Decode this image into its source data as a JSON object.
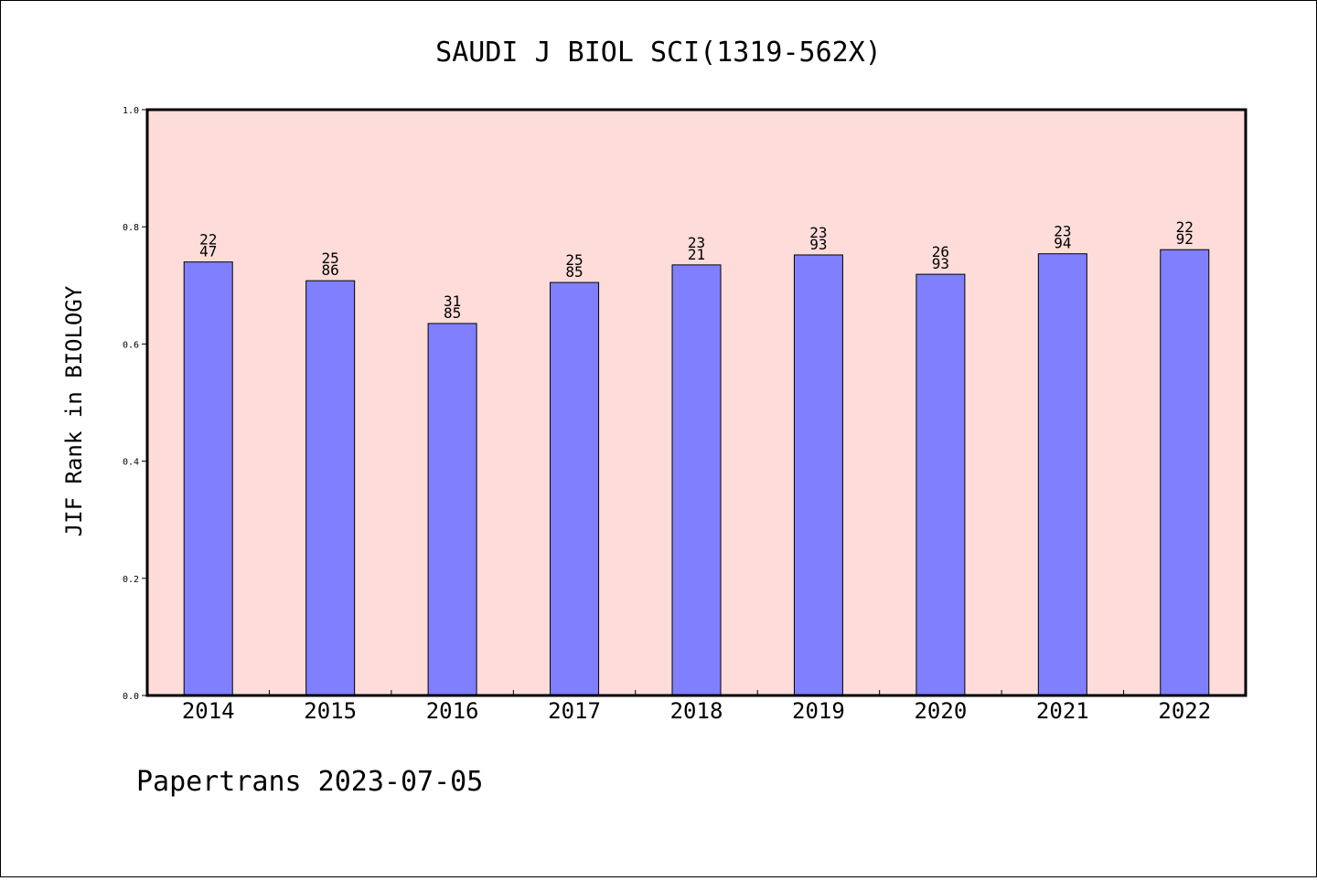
{
  "chart_data": {
    "type": "bar",
    "title": "SAUDI J BIOL SCI(1319-562X)",
    "xlabel": "",
    "ylabel": "JIF Rank in BIOLOGY",
    "ylim": [
      0,
      1.0
    ],
    "yticks": [
      "0.0",
      "0.2",
      "0.4",
      "0.6",
      "0.8",
      "1.0"
    ],
    "categories": [
      "2014",
      "2015",
      "2016",
      "2017",
      "2018",
      "2019",
      "2020",
      "2021",
      "2022"
    ],
    "values": [
      0.74,
      0.708,
      0.635,
      0.705,
      0.735,
      0.752,
      0.719,
      0.754,
      0.761
    ],
    "data_labels": [
      [
        "22",
        "47"
      ],
      [
        "25",
        "86"
      ],
      [
        "31",
        "85"
      ],
      [
        "25",
        "85"
      ],
      [
        "23",
        "21"
      ],
      [
        "23",
        "93"
      ],
      [
        "26",
        "93"
      ],
      [
        "23",
        "94"
      ],
      [
        "22",
        "92"
      ]
    ],
    "colors": {
      "bar": "#8080ff",
      "plot_background": "#fddcda",
      "bar_stroke": "#000000"
    },
    "grid": false,
    "legend": "none"
  },
  "footer": {
    "text": "Papertrans 2023-07-05"
  }
}
